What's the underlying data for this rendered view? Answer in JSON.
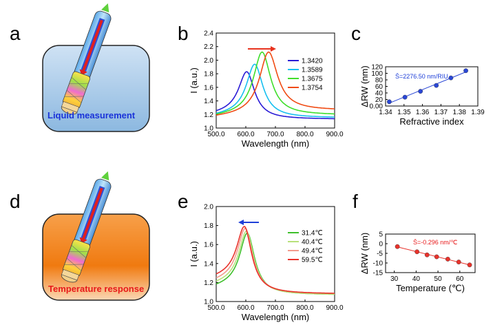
{
  "panel_labels": {
    "a": "a",
    "b": "b",
    "c": "c",
    "d": "d",
    "e": "e",
    "f": "f"
  },
  "panel_a": {
    "box_text": "Liquid  measurement",
    "box_text_color": "#1a33d9",
    "box_color": "#b5d3ec"
  },
  "panel_d": {
    "box_text": "Temperature response",
    "box_text_color": "#e8191a",
    "box_color": "#f08a1d"
  },
  "colors": {
    "shift_arrow_red": "#e8321e",
    "shift_arrow_blue": "#1e3fd8"
  },
  "chart_data": [
    {
      "id": "b",
      "type": "line",
      "xlabel": "Wavelength (nm)",
      "ylabel": "I (a.u.)",
      "xlim": [
        500,
        900
      ],
      "ylim": [
        1.0,
        2.4
      ],
      "xticks": [
        500,
        600,
        700,
        800,
        900
      ],
      "yticks": [
        1.0,
        1.2,
        1.4,
        1.6,
        1.8,
        2.0,
        2.2,
        2.4
      ],
      "legend_position": "top-right",
      "series": [
        {
          "name": "1.3420",
          "color": "#2a1bd6",
          "peak_x": 603,
          "peak_y": 1.83,
          "baseline": 1.2,
          "tail": 1.13,
          "width": 48
        },
        {
          "name": "1.3589",
          "color": "#16bff0",
          "peak_x": 630,
          "peak_y": 1.94,
          "baseline": 1.17,
          "tail": 1.15,
          "width": 50
        },
        {
          "name": "1.3675",
          "color": "#3ede2a",
          "peak_x": 655,
          "peak_y": 2.12,
          "baseline": 1.16,
          "tail": 1.19,
          "width": 52
        },
        {
          "name": "1.3754",
          "color": "#f04a12",
          "peak_x": 677,
          "peak_y": 2.12,
          "baseline": 1.15,
          "tail": 1.26,
          "width": 55
        }
      ]
    },
    {
      "id": "c",
      "type": "scatter",
      "xlabel": "Refractive index",
      "ylabel": "ΔRW (nm)",
      "xlim": [
        1.34,
        1.39
      ],
      "ylim": [
        0,
        120
      ],
      "xticks": [
        1.34,
        1.35,
        1.36,
        1.37,
        1.38,
        1.39
      ],
      "yticks": [
        0,
        20,
        40,
        60,
        80,
        100,
        120
      ],
      "annotation": "S̄=2276.50 nm/RIU",
      "annotation_color": "#1e3fd8",
      "marker_color": "#2a47d6",
      "points": [
        [
          1.342,
          13
        ],
        [
          1.3505,
          27
        ],
        [
          1.3589,
          45
        ],
        [
          1.3675,
          63
        ],
        [
          1.3754,
          86
        ],
        [
          1.3835,
          108
        ]
      ]
    },
    {
      "id": "e",
      "type": "line",
      "xlabel": "Wavelength (nm)",
      "ylabel": "I (a.u.)",
      "xlim": [
        500,
        900
      ],
      "ylim": [
        1.0,
        2.0
      ],
      "xticks": [
        500,
        600,
        700,
        800,
        900
      ],
      "yticks": [
        1.0,
        1.2,
        1.4,
        1.6,
        1.8,
        2.0
      ],
      "legend_position": "top-right",
      "series": [
        {
          "name": "31.4℃",
          "color": "#3dbf2a",
          "peak_x": 605,
          "peak_y": 1.72,
          "baseline": 1.14,
          "tail": 1.07,
          "width": 45
        },
        {
          "name": "40.4℃",
          "color": "#b8e07a",
          "peak_x": 602,
          "peak_y": 1.74,
          "baseline": 1.17,
          "tail": 1.07,
          "width": 45
        },
        {
          "name": "49.4℃",
          "color": "#f29a8c",
          "peak_x": 598,
          "peak_y": 1.77,
          "baseline": 1.2,
          "tail": 1.08,
          "width": 45
        },
        {
          "name": "59.5℃",
          "color": "#e8322b",
          "peak_x": 595,
          "peak_y": 1.79,
          "baseline": 1.24,
          "tail": 1.08,
          "width": 45
        }
      ]
    },
    {
      "id": "f",
      "type": "scatter",
      "xlabel": "Temperature (℃)",
      "ylabel": "ΔRW (nm)",
      "xlim": [
        26,
        67
      ],
      "ylim": [
        -15,
        5
      ],
      "xticks": [
        30,
        40,
        50,
        60
      ],
      "yticks": [
        5,
        0,
        -5,
        -10,
        -15
      ],
      "annotation": "S̄=-0.296 nm/℃",
      "annotation_color": "#e8191a",
      "marker_color": "#e8322b",
      "points": [
        [
          31.4,
          -1.5
        ],
        [
          40.4,
          -4.2
        ],
        [
          45,
          -5.8
        ],
        [
          49.4,
          -6.8
        ],
        [
          54.5,
          -8.0
        ],
        [
          59.5,
          -9.5
        ],
        [
          64.5,
          -11.0
        ]
      ]
    }
  ]
}
